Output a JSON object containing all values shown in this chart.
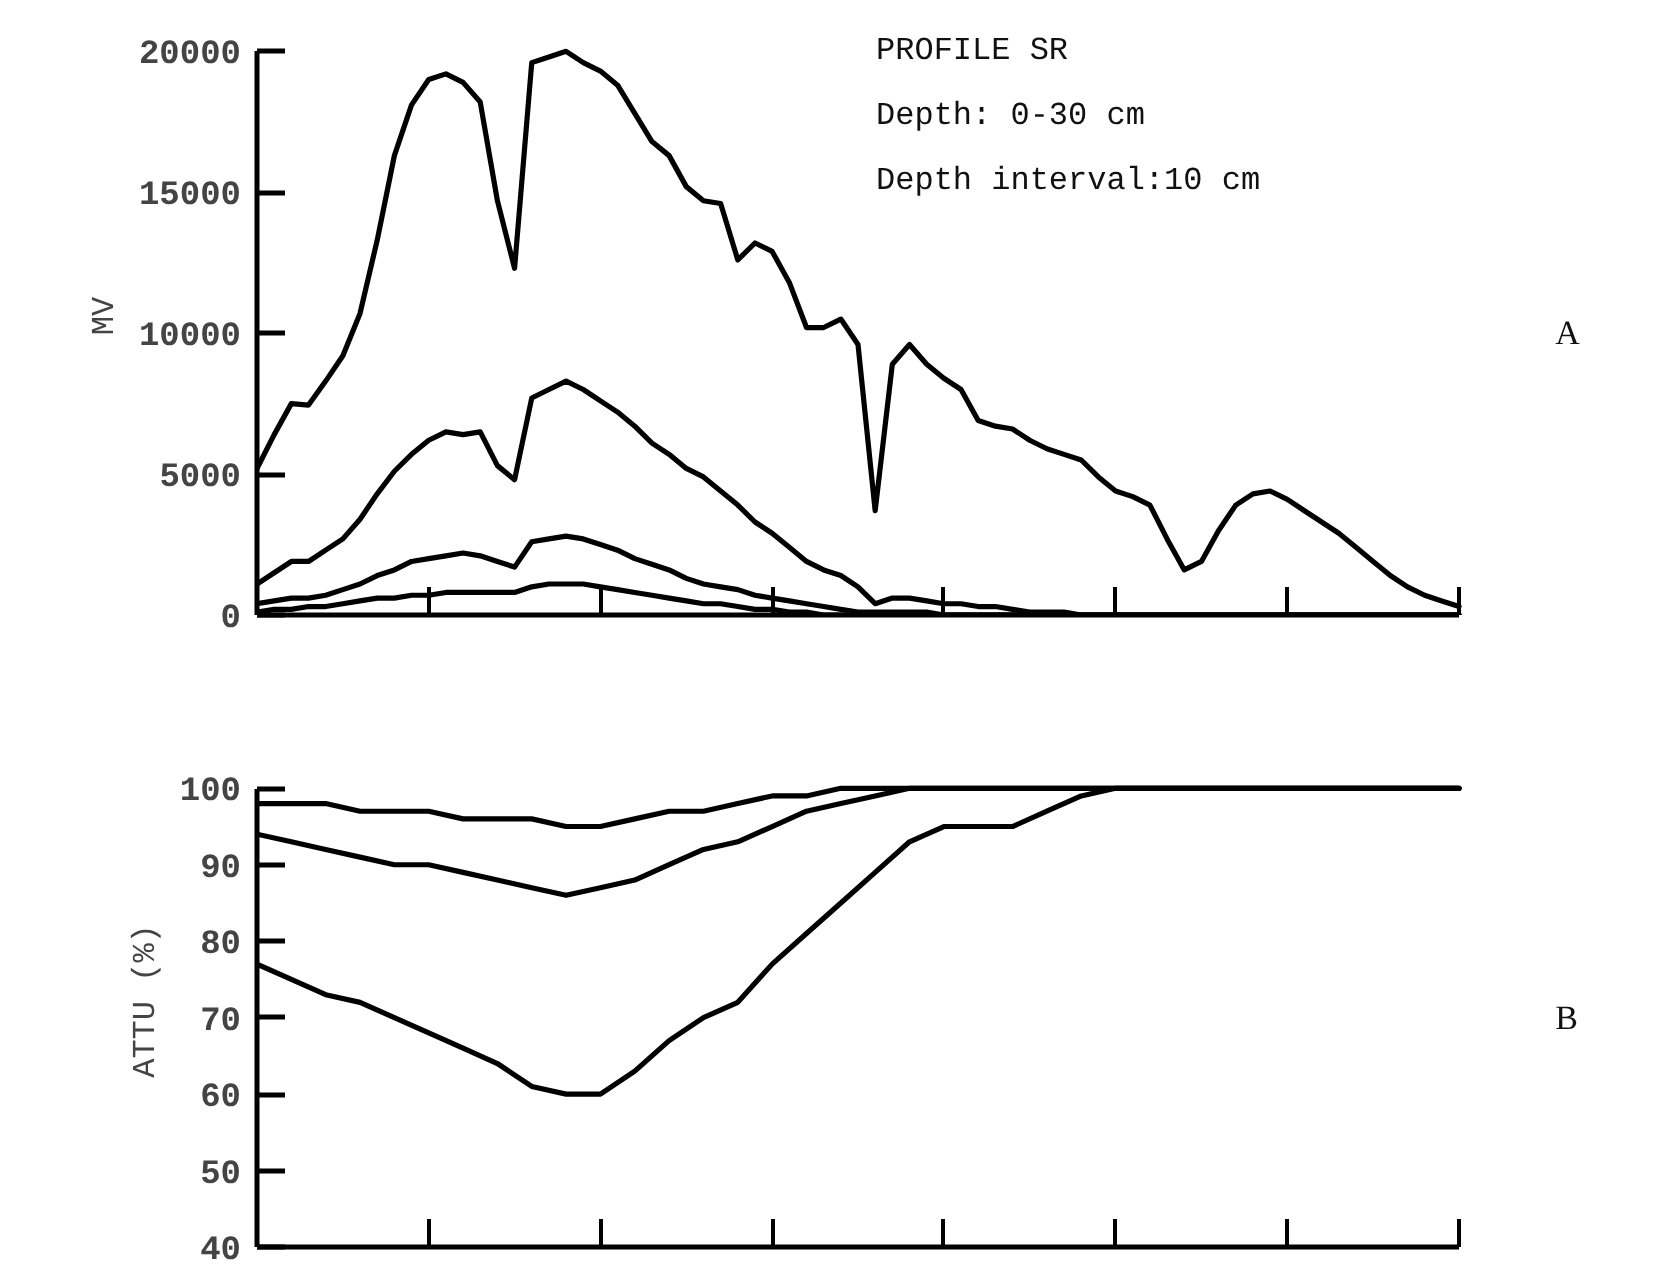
{
  "chart_data": [
    {
      "type": "line",
      "ylabel": "MV",
      "annotations": [
        "PROFILE SR",
        "Depth: 0-30 cm",
        "Depth interval:10 cm",
        "A"
      ],
      "categories": [
        null,
        null,
        null,
        null,
        null,
        null,
        null,
        null,
        null,
        null,
        null,
        null,
        null,
        null,
        null,
        null,
        null,
        null,
        null,
        null,
        null,
        null,
        null,
        null,
        null,
        null,
        null,
        null,
        null,
        null,
        null,
        null,
        null,
        null,
        null,
        null,
        null,
        null,
        null,
        null,
        null,
        null,
        null,
        null,
        null,
        null,
        null,
        null,
        null,
        null,
        null,
        null,
        null,
        null,
        null,
        null,
        null,
        null,
        null,
        null,
        null,
        null,
        null,
        null,
        null,
        null,
        null,
        null,
        null,
        null,
        null
      ],
      "series": [
        {
          "color": "#000000",
          "values": [
            5200,
            6400,
            7500,
            7450,
            8300,
            9200,
            10700,
            13300,
            16300,
            18100,
            19000,
            19200,
            18900,
            18200,
            14700,
            12300,
            19600,
            19800,
            20000,
            19600,
            19300,
            18800,
            17800,
            16800,
            16300,
            15200,
            14700,
            14600,
            12600,
            13200,
            12900,
            11800,
            10200,
            10200,
            10500,
            9600,
            3700,
            8900,
            9600,
            8900,
            8400,
            8000,
            6900,
            6700,
            6600,
            6200,
            5900,
            5700,
            5500,
            4900,
            4400,
            4200,
            3900,
            2700,
            1600,
            1900,
            3000,
            3900,
            4300,
            4400,
            4100,
            3700,
            3300,
            2900,
            2400,
            1900,
            1400,
            1000,
            700,
            500,
            300
          ]
        },
        {
          "color": "#000000",
          "values": [
            1100,
            1500,
            1900,
            1900,
            2300,
            2700,
            3400,
            4300,
            5100,
            5700,
            6200,
            6500,
            6400,
            6500,
            5300,
            4800,
            7700,
            8000,
            8300,
            8000,
            7600,
            7200,
            6700,
            6100,
            5700,
            5200,
            4900,
            4400,
            3900,
            3300,
            2900,
            2400,
            1900,
            1600,
            1400,
            1000,
            400,
            600,
            600,
            500,
            400,
            400,
            300,
            300,
            200,
            100,
            100,
            100,
            0,
            0,
            0,
            0,
            0,
            0,
            0,
            0,
            0,
            0,
            0,
            0,
            0,
            0,
            0,
            0,
            0,
            0,
            0,
            0,
            0,
            0,
            0
          ]
        },
        {
          "color": "#000000",
          "values": [
            400,
            500,
            600,
            600,
            700,
            900,
            1100,
            1400,
            1600,
            1900,
            2000,
            2100,
            2200,
            2100,
            1900,
            1700,
            2600,
            2700,
            2800,
            2700,
            2500,
            2300,
            2000,
            1800,
            1600,
            1300,
            1100,
            1000,
            900,
            700,
            600,
            500,
            400,
            300,
            200,
            100,
            100,
            100,
            100,
            100,
            0,
            0,
            0,
            0,
            0,
            0,
            0,
            0,
            0,
            0,
            0,
            0,
            0,
            0,
            0,
            0,
            0,
            0,
            0,
            0,
            0,
            0,
            0,
            0,
            0,
            0,
            0,
            0,
            0,
            0,
            0
          ]
        },
        {
          "color": "#000000",
          "values": [
            100,
            200,
            200,
            300,
            300,
            400,
            500,
            600,
            600,
            700,
            700,
            800,
            800,
            800,
            800,
            800,
            1000,
            1100,
            1100,
            1100,
            1000,
            900,
            800,
            700,
            600,
            500,
            400,
            400,
            300,
            200,
            200,
            100,
            100,
            0,
            0,
            0,
            0,
            0,
            0,
            0,
            0,
            0,
            0,
            0,
            0,
            0,
            0,
            0,
            0,
            0,
            0,
            0,
            0,
            0,
            0,
            0,
            0,
            0,
            0,
            0,
            0,
            0,
            0,
            0,
            0,
            0,
            0,
            0,
            0,
            0,
            0
          ]
        }
      ],
      "ylim": [
        0,
        20000
      ],
      "yticks": [
        0,
        5000,
        10000,
        15000,
        20000
      ],
      "tick_labels": "y"
    },
    {
      "type": "line",
      "ylabel": "ATTU (%)",
      "annotations": [
        "B"
      ],
      "categories": [
        null,
        null,
        null,
        null,
        null,
        null,
        null,
        null,
        null,
        null,
        null,
        null,
        null,
        null,
        null,
        null,
        null,
        null,
        null,
        null,
        null,
        null,
        null,
        null,
        null,
        null,
        null,
        null,
        null,
        null,
        null,
        null,
        null,
        null,
        null,
        null
      ],
      "series": [
        {
          "color": "#000000",
          "values": [
            98,
            98,
            98,
            97,
            97,
            97,
            96,
            96,
            96,
            95,
            95,
            96,
            97,
            97,
            98,
            99,
            99,
            100,
            100,
            100,
            100,
            100,
            100,
            100,
            100,
            100,
            100,
            100,
            100,
            100,
            100,
            100,
            100,
            100,
            100,
            100
          ]
        },
        {
          "color": "#000000",
          "values": [
            94,
            93,
            92,
            91,
            90,
            90,
            89,
            88,
            87,
            86,
            87,
            88,
            90,
            92,
            93,
            95,
            97,
            98,
            99,
            100,
            100,
            100,
            100,
            100,
            100,
            100,
            100,
            100,
            100,
            100,
            100,
            100,
            100,
            100,
            100,
            100
          ]
        },
        {
          "color": "#000000",
          "values": [
            77,
            75,
            73,
            72,
            70,
            68,
            66,
            64,
            61,
            60,
            60,
            63,
            67,
            70,
            72,
            77,
            81,
            85,
            89,
            93,
            95,
            95,
            95,
            97,
            99,
            100,
            100,
            100,
            100,
            100,
            100,
            100,
            100,
            100,
            100,
            100
          ]
        }
      ],
      "ylim": [
        40,
        100
      ],
      "yticks": [
        40,
        50,
        60,
        70,
        80,
        90,
        100
      ],
      "tick_labels": "y"
    }
  ]
}
